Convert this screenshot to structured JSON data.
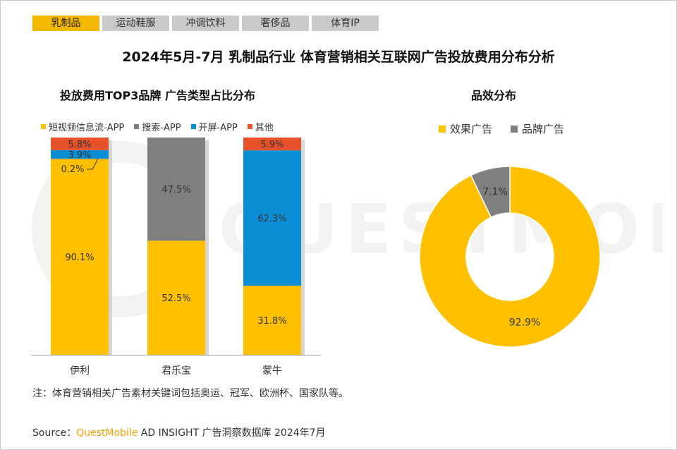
{
  "tabs": [
    {
      "label": "乳制品",
      "active": true
    },
    {
      "label": "运动鞋服",
      "active": false
    },
    {
      "label": "冲调饮料",
      "active": false
    },
    {
      "label": "奢侈品",
      "active": false
    },
    {
      "label": "体育IP",
      "active": false
    }
  ],
  "title": "2024年5月-7月 乳制品行业 体育营销相关互联网广告投放费用分布分析",
  "watermark_text": "QUESTMOBILE",
  "colors": {
    "accent": "#f5b800",
    "short_video": "#ffc000",
    "search": "#7f7f7f",
    "splash": "#0a8fd6",
    "other": "#e8522a",
    "brand_ad": "#7f7f7f",
    "effect_ad": "#ffc000"
  },
  "chart_data": [
    {
      "type": "bar",
      "stacked": true,
      "title": "投放费用TOP3品牌 广告类型占比分布",
      "categories": [
        "伊利",
        "君乐宝",
        "蒙牛"
      ],
      "series": [
        {
          "name": "短视频信息流-APP",
          "values": [
            90.1,
            52.5,
            31.8
          ],
          "labels": [
            "90.1%",
            "52.5%",
            "31.8%"
          ]
        },
        {
          "name": "搜索-APP",
          "values": [
            0.2,
            47.5,
            0
          ],
          "labels": [
            "0.2%",
            "47.5%",
            ""
          ]
        },
        {
          "name": "开屏-APP",
          "values": [
            3.9,
            0,
            62.3
          ],
          "labels": [
            "3.9%",
            "",
            "62.3%"
          ]
        },
        {
          "name": "其他",
          "values": [
            5.8,
            0,
            5.9
          ],
          "labels": [
            "5.8%",
            "",
            "5.9%"
          ]
        }
      ],
      "ylim": [
        0,
        100
      ],
      "legend_position": "top"
    },
    {
      "type": "pie",
      "donut": true,
      "title": "品效分布",
      "slices": [
        {
          "name": "效果广告",
          "value": 92.9,
          "label": "92.9%"
        },
        {
          "name": "品牌广告",
          "value": 7.1,
          "label": "7.1%"
        }
      ],
      "legend_position": "top"
    }
  ],
  "note": "注：体育营销相关广告素材关键词包括奥运、冠军、欧洲杯、国家队等。",
  "source": {
    "prefix": "Source：",
    "brand": "QuestMobile",
    "rest": " AD INSIGHT 广告洞察数据库 2024年7月"
  }
}
